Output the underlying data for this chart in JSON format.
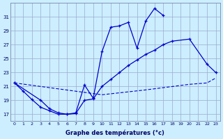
{
  "title": "Graphe des températures (°c)",
  "bg_color": "#cceeff",
  "grid_color": "#99aacc",
  "line_color": "#0000cc",
  "ylim": [
    16,
    33
  ],
  "yticks": [
    17,
    19,
    21,
    23,
    25,
    27,
    29,
    31
  ],
  "x_labels": [
    "0",
    "1",
    "2",
    "3",
    "4",
    "5",
    "6",
    "7",
    "8",
    "9",
    "10",
    "11",
    "12",
    "13",
    "14",
    "15",
    "16",
    "17",
    "18",
    "19",
    "20",
    "21",
    "22",
    "23"
  ],
  "curve1_x": [
    0,
    1,
    2,
    3,
    4,
    5,
    6,
    7,
    8,
    9,
    10,
    11,
    12,
    13,
    14,
    15,
    16,
    17
  ],
  "curve1_y": [
    21.5,
    20.3,
    19.1,
    18.0,
    17.5,
    17.0,
    17.0,
    17.2,
    21.2,
    19.3,
    26.0,
    29.5,
    29.7,
    30.2,
    26.5,
    30.4,
    32.2,
    31.2
  ],
  "curve2_x": [
    0,
    3,
    4,
    5,
    6,
    7,
    8,
    9,
    10,
    11,
    12,
    13,
    14,
    15,
    16,
    17,
    18,
    20,
    22,
    23
  ],
  "curve2_y": [
    21.5,
    19.0,
    17.8,
    17.2,
    17.0,
    17.1,
    19.0,
    19.2,
    21.0,
    22.0,
    23.0,
    24.0,
    24.8,
    25.6,
    26.2,
    27.0,
    27.5,
    27.8,
    24.2,
    23.0
  ],
  "curve3_x": [
    0,
    10,
    15,
    20,
    22,
    23
  ],
  "curve3_y": [
    21.5,
    19.8,
    20.5,
    21.3,
    21.5,
    22.2
  ]
}
